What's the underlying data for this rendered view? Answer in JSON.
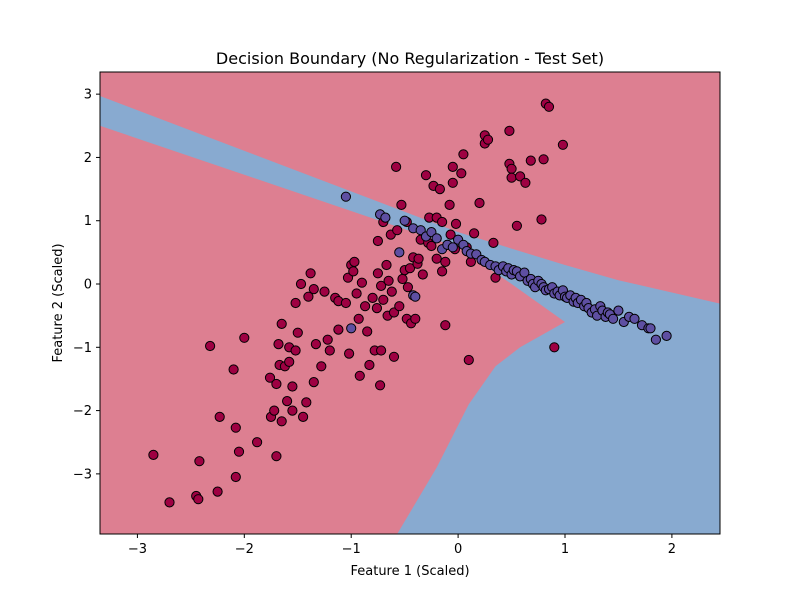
{
  "chart_data": {
    "type": "scatter",
    "title": "Decision Boundary (No Regularization - Test Set)",
    "xlabel": "Feature 1 (Scaled)",
    "ylabel": "Feature 2 (Scaled)",
    "xlim": [
      -3.35,
      2.45
    ],
    "ylim": [
      -3.95,
      3.35
    ],
    "x_ticks": [
      -3,
      -2,
      -1,
      0,
      1,
      2
    ],
    "y_ticks": [
      -3,
      -2,
      -1,
      0,
      1,
      2,
      3
    ],
    "x_tick_labels": [
      "−3",
      "−2",
      "−1",
      "0",
      "1",
      "2"
    ],
    "y_tick_labels": [
      "−3",
      "−2",
      "−1",
      "0",
      "1",
      "2",
      "3"
    ],
    "grid": false,
    "colors": {
      "region_class_0": "#dd7f91",
      "region_class_1": "#88aad0",
      "point_class_0": "#9e0142",
      "point_class_1": "#5e4fa2",
      "point_edge": "#000000"
    },
    "regions": [
      {
        "class": 1,
        "polygon": [
          [
            -3.35,
            2.97
          ],
          [
            0.0,
            0.82
          ],
          [
            0.5,
            0.56
          ],
          [
            1.0,
            0.3
          ],
          [
            1.5,
            0.06
          ],
          [
            2.45,
            -0.31
          ],
          [
            2.45,
            -3.95
          ],
          [
            -0.57,
            -3.95
          ],
          [
            -0.2,
            -2.9
          ],
          [
            0.1,
            -1.9
          ],
          [
            0.35,
            -1.3
          ],
          [
            0.58,
            -1.0
          ],
          [
            1.0,
            -0.6
          ],
          [
            0.5,
            0.0
          ],
          [
            0.0,
            0.58
          ],
          [
            -3.35,
            2.5
          ]
        ]
      }
    ],
    "series": [
      {
        "class": 0,
        "points": [
          [
            -2.85,
            -2.7
          ],
          [
            -2.7,
            -3.45
          ],
          [
            -2.45,
            -3.35
          ],
          [
            -2.43,
            -3.4
          ],
          [
            -2.42,
            -2.8
          ],
          [
            -2.32,
            -0.98
          ],
          [
            -2.25,
            -3.28
          ],
          [
            -2.23,
            -2.1
          ],
          [
            -2.1,
            -1.35
          ],
          [
            -2.08,
            -3.05
          ],
          [
            -2.08,
            -2.27
          ],
          [
            -2.05,
            -2.65
          ],
          [
            -2.0,
            -0.85
          ],
          [
            -1.88,
            -2.5
          ],
          [
            -1.76,
            -1.48
          ],
          [
            -1.75,
            -2.1
          ],
          [
            -1.72,
            -2.0
          ],
          [
            -1.7,
            -1.58
          ],
          [
            -1.7,
            -2.72
          ],
          [
            -1.68,
            -0.95
          ],
          [
            -1.67,
            -1.28
          ],
          [
            -1.65,
            -0.63
          ],
          [
            -1.65,
            -2.17
          ],
          [
            -1.62,
            -1.3
          ],
          [
            -1.6,
            -1.85
          ],
          [
            -1.58,
            -1.0
          ],
          [
            -1.58,
            -1.23
          ],
          [
            -1.55,
            -2.0
          ],
          [
            -1.55,
            -1.62
          ],
          [
            -1.52,
            -1.05
          ],
          [
            -1.52,
            -0.3
          ],
          [
            -1.5,
            -0.77
          ],
          [
            -1.47,
            0.0
          ],
          [
            -1.45,
            -2.1
          ],
          [
            -1.42,
            -1.87
          ],
          [
            -1.4,
            -0.2
          ],
          [
            -1.38,
            0.17
          ],
          [
            -1.35,
            -0.08
          ],
          [
            -1.35,
            -1.55
          ],
          [
            -1.33,
            -0.95
          ],
          [
            -1.28,
            -1.3
          ],
          [
            -1.25,
            -0.12
          ],
          [
            -1.22,
            -0.88
          ],
          [
            -1.2,
            -1.05
          ],
          [
            -1.15,
            -0.22
          ],
          [
            -1.12,
            -0.27
          ],
          [
            -1.12,
            -0.72
          ],
          [
            -1.05,
            -0.3
          ],
          [
            -1.03,
            0.1
          ],
          [
            -1.02,
            -1.1
          ],
          [
            -1.0,
            0.3
          ],
          [
            -0.98,
            0.2
          ],
          [
            -0.97,
            0.35
          ],
          [
            -0.95,
            -0.15
          ],
          [
            -0.93,
            -0.55
          ],
          [
            -0.92,
            -1.45
          ],
          [
            -0.9,
            0.02
          ],
          [
            -0.87,
            -0.35
          ],
          [
            -0.85,
            -0.75
          ],
          [
            -0.83,
            -1.28
          ],
          [
            -0.8,
            -0.22
          ],
          [
            -0.78,
            -1.05
          ],
          [
            -0.76,
            -0.38
          ],
          [
            -0.75,
            0.17
          ],
          [
            -0.75,
            0.68
          ],
          [
            -0.73,
            -1.6
          ],
          [
            -0.72,
            -0.03
          ],
          [
            -0.72,
            -1.05
          ],
          [
            -0.7,
            -0.25
          ],
          [
            -0.7,
            0.98
          ],
          [
            -0.67,
            0.3
          ],
          [
            -0.66,
            -0.5
          ],
          [
            -0.65,
            0.05
          ],
          [
            -0.63,
            0.78
          ],
          [
            -0.62,
            -0.12
          ],
          [
            -0.6,
            -1.15
          ],
          [
            -0.6,
            -0.45
          ],
          [
            -0.58,
            1.85
          ],
          [
            -0.57,
            0.85
          ],
          [
            -0.55,
            -0.35
          ],
          [
            -0.53,
            1.25
          ],
          [
            -0.52,
            0.08
          ],
          [
            -0.5,
            0.22
          ],
          [
            -0.48,
            0.98
          ],
          [
            -0.48,
            -0.55
          ],
          [
            -0.47,
            -0.05
          ],
          [
            -0.45,
            0.25
          ],
          [
            -0.44,
            -0.62
          ],
          [
            -0.42,
            0.42
          ],
          [
            -0.4,
            -0.55
          ],
          [
            -0.38,
            0.32
          ],
          [
            -0.37,
            0.4
          ],
          [
            -0.35,
            0.7
          ],
          [
            -0.33,
            0.15
          ],
          [
            -0.3,
            1.72
          ],
          [
            -0.28,
            0.65
          ],
          [
            -0.27,
            1.05
          ],
          [
            -0.25,
            0.6
          ],
          [
            -0.23,
            1.55
          ],
          [
            -0.2,
            0.4
          ],
          [
            -0.2,
            1.05
          ],
          [
            -0.17,
            1.5
          ],
          [
            -0.15,
            0.2
          ],
          [
            -0.15,
            0.98
          ],
          [
            -0.12,
            0.35
          ],
          [
            -0.12,
            -0.65
          ],
          [
            -0.1,
            0.62
          ],
          [
            -0.08,
            1.25
          ],
          [
            -0.07,
            0.78
          ],
          [
            -0.05,
            1.85
          ],
          [
            -0.05,
            1.6
          ],
          [
            -0.03,
            0.55
          ],
          [
            -0.02,
            0.95
          ],
          [
            0.03,
            1.75
          ],
          [
            0.05,
            2.05
          ],
          [
            0.08,
            0.58
          ],
          [
            0.1,
            -1.2
          ],
          [
            0.12,
            0.35
          ],
          [
            0.15,
            0.8
          ],
          [
            0.2,
            1.28
          ],
          [
            0.25,
            2.22
          ],
          [
            0.25,
            2.35
          ],
          [
            0.28,
            2.28
          ],
          [
            0.33,
            0.65
          ],
          [
            0.35,
            0.1
          ],
          [
            0.48,
            2.42
          ],
          [
            0.48,
            1.9
          ],
          [
            0.5,
            1.82
          ],
          [
            0.5,
            1.68
          ],
          [
            0.55,
            0.92
          ],
          [
            0.58,
            1.7
          ],
          [
            0.63,
            1.6
          ],
          [
            0.68,
            1.95
          ],
          [
            0.78,
            1.02
          ],
          [
            0.8,
            1.97
          ],
          [
            0.82,
            2.85
          ],
          [
            0.85,
            2.8
          ],
          [
            0.98,
            2.2
          ],
          [
            0.9,
            -1.0
          ]
        ]
      },
      {
        "class": 1,
        "points": [
          [
            -1.05,
            1.38
          ],
          [
            -0.73,
            1.1
          ],
          [
            -0.68,
            1.05
          ],
          [
            -0.55,
            0.5
          ],
          [
            -0.5,
            1.0
          ],
          [
            -0.42,
            0.88
          ],
          [
            -0.42,
            -0.18
          ],
          [
            -0.35,
            0.85
          ],
          [
            -0.3,
            0.75
          ],
          [
            -0.25,
            0.82
          ],
          [
            -0.2,
            0.72
          ],
          [
            -0.15,
            0.55
          ],
          [
            -0.1,
            0.62
          ],
          [
            -0.05,
            0.58
          ],
          [
            0.0,
            0.7
          ],
          [
            0.05,
            0.62
          ],
          [
            0.08,
            0.52
          ],
          [
            0.12,
            0.48
          ],
          [
            0.17,
            0.47
          ],
          [
            0.22,
            0.38
          ],
          [
            0.25,
            0.35
          ],
          [
            0.3,
            0.3
          ],
          [
            0.35,
            0.28
          ],
          [
            0.38,
            0.22
          ],
          [
            0.42,
            0.28
          ],
          [
            0.45,
            0.2
          ],
          [
            0.47,
            0.25
          ],
          [
            0.5,
            0.15
          ],
          [
            0.52,
            0.22
          ],
          [
            0.55,
            0.2
          ],
          [
            0.58,
            0.12
          ],
          [
            0.62,
            0.18
          ],
          [
            0.65,
            0.05
          ],
          [
            0.68,
            0.08
          ],
          [
            0.7,
            0.0
          ],
          [
            0.72,
            -0.05
          ],
          [
            0.75,
            0.05
          ],
          [
            0.78,
            0.0
          ],
          [
            0.8,
            -0.05
          ],
          [
            0.82,
            -0.1
          ],
          [
            0.85,
            -0.08
          ],
          [
            0.88,
            -0.05
          ],
          [
            0.9,
            -0.15
          ],
          [
            0.93,
            -0.12
          ],
          [
            0.95,
            -0.18
          ],
          [
            0.98,
            -0.1
          ],
          [
            1.0,
            -0.2
          ],
          [
            1.02,
            -0.22
          ],
          [
            1.05,
            -0.18
          ],
          [
            1.08,
            -0.28
          ],
          [
            1.1,
            -0.22
          ],
          [
            1.12,
            -0.3
          ],
          [
            1.15,
            -0.25
          ],
          [
            1.18,
            -0.35
          ],
          [
            1.2,
            -0.3
          ],
          [
            1.22,
            -0.38
          ],
          [
            1.25,
            -0.45
          ],
          [
            1.28,
            -0.4
          ],
          [
            1.3,
            -0.5
          ],
          [
            1.33,
            -0.35
          ],
          [
            1.35,
            -0.42
          ],
          [
            1.38,
            -0.52
          ],
          [
            1.4,
            -0.45
          ],
          [
            1.42,
            -0.48
          ],
          [
            1.45,
            -0.55
          ],
          [
            1.5,
            -0.42
          ],
          [
            1.55,
            -0.6
          ],
          [
            1.6,
            -0.52
          ],
          [
            1.65,
            -0.55
          ],
          [
            1.72,
            -0.65
          ],
          [
            1.78,
            -0.7
          ],
          [
            1.85,
            -0.88
          ],
          [
            1.95,
            -0.82
          ],
          [
            -1.0,
            -0.7
          ],
          [
            -0.4,
            -0.2
          ],
          [
            1.8,
            -0.7
          ]
        ]
      }
    ]
  }
}
